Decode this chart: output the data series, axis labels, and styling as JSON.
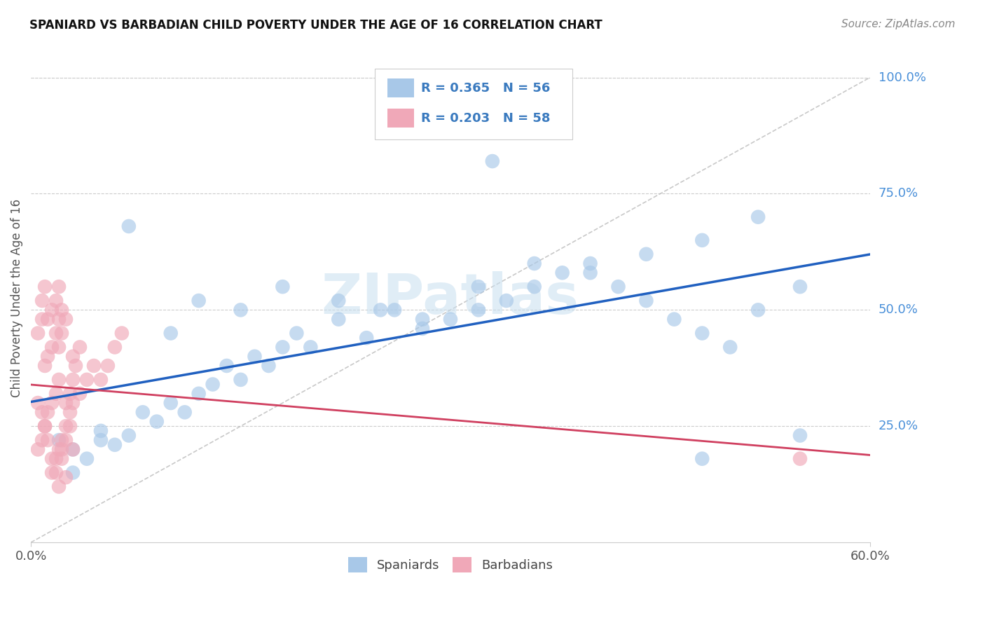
{
  "title": "SPANIARD VS BARBADIAN CHILD POVERTY UNDER THE AGE OF 16 CORRELATION CHART",
  "source": "Source: ZipAtlas.com",
  "ylabel": "Child Poverty Under the Age of 16",
  "yticks_labels": [
    "100.0%",
    "75.0%",
    "50.0%",
    "25.0%"
  ],
  "ytick_vals": [
    1.0,
    0.75,
    0.5,
    0.25
  ],
  "spaniard_color": "#a8c8e8",
  "barbadian_color": "#f0a8b8",
  "trend_blue": "#2060c0",
  "trend_pink": "#d04060",
  "R_spaniard": 0.365,
  "N_spaniard": 56,
  "R_barbadian": 0.203,
  "N_barbadian": 58,
  "watermark_color": "#c8dff0",
  "background_color": "#ffffff",
  "grid_color": "#cccccc",
  "xlim": [
    0.0,
    0.6
  ],
  "ylim": [
    0.0,
    1.05
  ],
  "title_fontsize": 12,
  "source_fontsize": 11,
  "tick_fontsize": 13,
  "ylabel_fontsize": 12
}
